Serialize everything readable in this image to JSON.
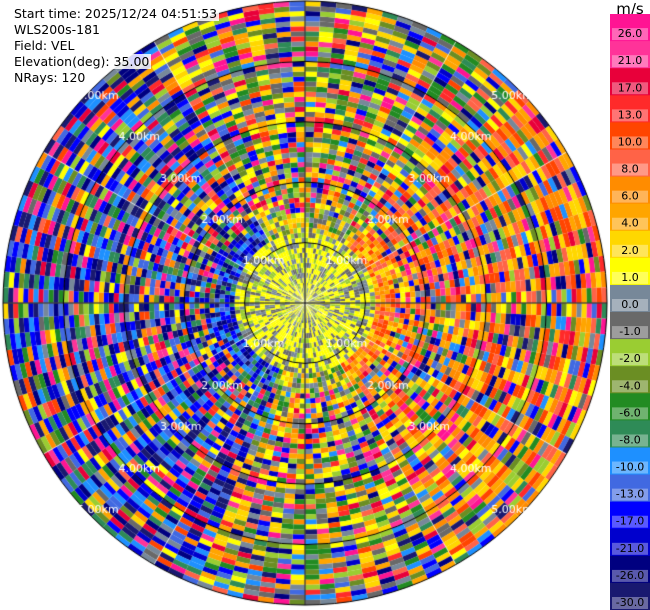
{
  "header": {
    "start_time": "Start time: 2025/12/24 04:51:53",
    "instrument": "WLS200s-181",
    "field": "Field: VEL",
    "elevation": "Elevation(deg): 35.00",
    "nrays": "NRays: 120"
  },
  "chart_data": {
    "type": "heatmap",
    "projection": "polar-ppi",
    "title": "",
    "field": "VEL",
    "unit": "m/s",
    "nrays": 120,
    "elevation_deg": 35.0,
    "max_range_km": 5.0,
    "range_rings_km": [
      1.0,
      2.0,
      3.0,
      4.0,
      5.0
    ],
    "ring_labels": [
      "1.00km",
      "2.00km",
      "3.00km",
      "4.00km",
      "5.00km"
    ],
    "colorbar": {
      "ticks": [
        "26.0",
        "21.0",
        "17.0",
        "13.0",
        "10.0",
        "8.0",
        "6.0",
        "4.0",
        "2.0",
        "1.0",
        "0.0",
        "-1.0",
        "-2.0",
        "-4.0",
        "-6.0",
        "-8.0",
        "-10.0",
        "-13.0",
        "-17.0",
        "-21.0",
        "-26.0",
        "-30.0"
      ],
      "colors": [
        "#ff1493",
        "#ff3399",
        "#e8003a",
        "#ff2a2a",
        "#ff4500",
        "#ff6347",
        "#ff8c00",
        "#ffa500",
        "#ffd700",
        "#ffff00",
        "#778899",
        "#696969",
        "#9acd32",
        "#6b8e23",
        "#228b22",
        "#2e8b57",
        "#1e90ff",
        "#4169e1",
        "#0000ff",
        "#0000cd",
        "#000080",
        "#191970"
      ]
    }
  }
}
